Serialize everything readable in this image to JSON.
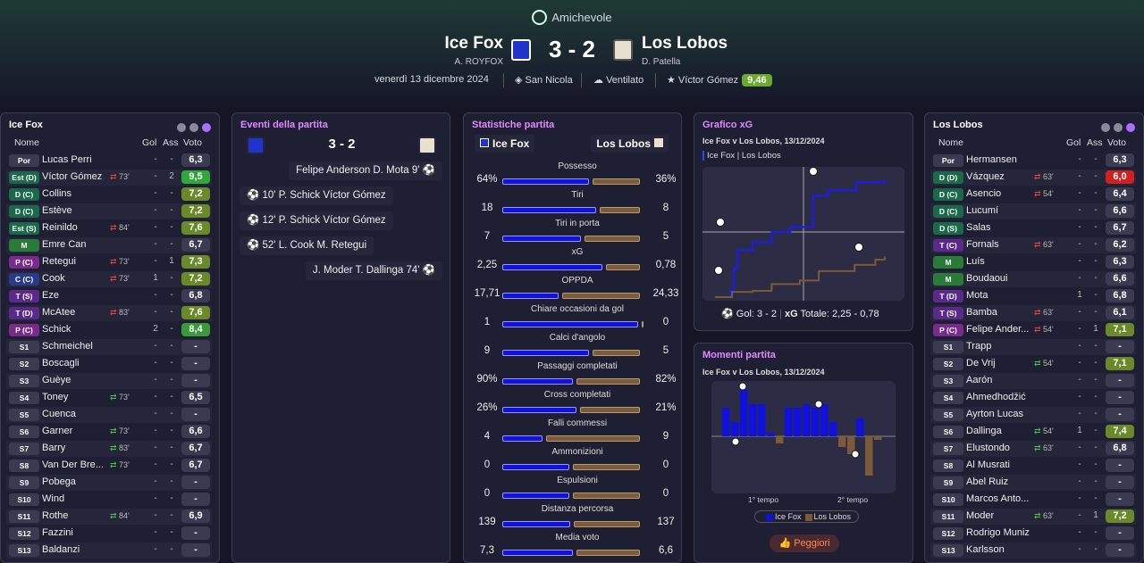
{
  "header": {
    "competition": "Amichevole",
    "home": {
      "name": "Ice Fox",
      "manager": "A. ROYFOX"
    },
    "away": {
      "name": "Los Lobos",
      "manager": "D. Patella"
    },
    "score": "3 - 2",
    "date": "venerdì 13 dicembre 2024",
    "stadium": "San Nicola",
    "weather": "Ventilato",
    "potm_name": "Víctor Gómez",
    "potm_rating": "9,46"
  },
  "colors": {
    "home": "#1111dd",
    "away": "#7a5a38",
    "accent": "#a870ff"
  },
  "home_lineup": {
    "title": "Ice Fox",
    "cols": {
      "name": "Nome",
      "goals": "Gol",
      "assists": "Ass",
      "rating": "Voto"
    },
    "players": [
      {
        "pos": "Por",
        "name": "Lucas Perri",
        "sub": "",
        "g": "-",
        "a": "-",
        "r": "6,3",
        "pc": "#3a3a50",
        "rc": "#3a3a50"
      },
      {
        "pos": "Est (D)",
        "name": "Víctor Gómez",
        "sub": "73'",
        "g": "-",
        "a": "2",
        "r": "9,5",
        "pc": "#1a6a4a",
        "rc": "#2fa83a"
      },
      {
        "pos": "D (C)",
        "name": "Collins",
        "sub": "",
        "g": "-",
        "a": "-",
        "r": "7,2",
        "pc": "#1a6a4a",
        "rc": "#6a8a2a"
      },
      {
        "pos": "D (C)",
        "name": "Estève",
        "sub": "",
        "g": "-",
        "a": "-",
        "r": "7,2",
        "pc": "#1a6a4a",
        "rc": "#6a8a2a"
      },
      {
        "pos": "Est (S)",
        "name": "Reinildo",
        "sub": "84'",
        "g": "-",
        "a": "-",
        "r": "7,6",
        "pc": "#1a6a4a",
        "rc": "#6a8a2a"
      },
      {
        "pos": "M",
        "name": "Emre Can",
        "sub": "",
        "g": "-",
        "a": "-",
        "r": "6,7",
        "pc": "#2a7a3a",
        "rc": "#3a3a50"
      },
      {
        "pos": "P (C)",
        "name": "Retegui",
        "sub": "73'",
        "g": "-",
        "a": "1",
        "r": "7,3",
        "pc": "#7a2a8a",
        "rc": "#6a8a2a"
      },
      {
        "pos": "C (C)",
        "name": "Cook",
        "sub": "73'",
        "g": "1",
        "a": "-",
        "r": "7,2",
        "pc": "#2a3a8a",
        "rc": "#6a8a2a"
      },
      {
        "pos": "T (S)",
        "name": "Eze",
        "sub": "",
        "g": "-",
        "a": "-",
        "r": "6,8",
        "pc": "#5a2a8a",
        "rc": "#3a3a50"
      },
      {
        "pos": "T (D)",
        "name": "McAtee",
        "sub": "83'",
        "g": "-",
        "a": "-",
        "r": "7,6",
        "pc": "#5a2a8a",
        "rc": "#6a8a2a"
      },
      {
        "pos": "P (C)",
        "name": "Schick",
        "sub": "",
        "g": "2",
        "a": "-",
        "r": "8,4",
        "pc": "#7a2a8a",
        "rc": "#3a9a3a"
      },
      {
        "pos": "S1",
        "name": "Schmeichel",
        "sub": "",
        "g": "-",
        "a": "-",
        "r": "-",
        "pc": "#3a3a50",
        "rc": "#3a3a50"
      },
      {
        "pos": "S2",
        "name": "Boscagli",
        "sub": "",
        "g": "-",
        "a": "-",
        "r": "-",
        "pc": "#3a3a50",
        "rc": "#3a3a50"
      },
      {
        "pos": "S3",
        "name": "Guèye",
        "sub": "",
        "g": "-",
        "a": "-",
        "r": "-",
        "pc": "#3a3a50",
        "rc": "#3a3a50"
      },
      {
        "pos": "S4",
        "name": "Toney",
        "sub": "73'",
        "g": "-",
        "a": "-",
        "r": "6,5",
        "pc": "#3a3a50",
        "rc": "#3a3a50"
      },
      {
        "pos": "S5",
        "name": "Cuenca",
        "sub": "",
        "g": "-",
        "a": "-",
        "r": "-",
        "pc": "#3a3a50",
        "rc": "#3a3a50"
      },
      {
        "pos": "S6",
        "name": "Garner",
        "sub": "73'",
        "g": "-",
        "a": "-",
        "r": "6,6",
        "pc": "#3a3a50",
        "rc": "#3a3a50"
      },
      {
        "pos": "S7",
        "name": "Barry",
        "sub": "83'",
        "g": "-",
        "a": "-",
        "r": "6,7",
        "pc": "#3a3a50",
        "rc": "#3a3a50"
      },
      {
        "pos": "S8",
        "name": "Van Der Bre...",
        "sub": "73'",
        "g": "-",
        "a": "-",
        "r": "6,7",
        "pc": "#3a3a50",
        "rc": "#3a3a50"
      },
      {
        "pos": "S9",
        "name": "Pobega",
        "sub": "",
        "g": "-",
        "a": "-",
        "r": "-",
        "pc": "#3a3a50",
        "rc": "#3a3a50"
      },
      {
        "pos": "S10",
        "name": "Wind",
        "sub": "",
        "g": "-",
        "a": "-",
        "r": "-",
        "pc": "#3a3a50",
        "rc": "#3a3a50"
      },
      {
        "pos": "S11",
        "name": "Rothe",
        "sub": "84'",
        "g": "-",
        "a": "-",
        "r": "6,9",
        "pc": "#3a3a50",
        "rc": "#3a3a50"
      },
      {
        "pos": "S12",
        "name": "Fazzini",
        "sub": "",
        "g": "-",
        "a": "-",
        "r": "-",
        "pc": "#3a3a50",
        "rc": "#3a3a50"
      },
      {
        "pos": "S13",
        "name": "Baldanzi",
        "sub": "",
        "g": "-",
        "a": "-",
        "r": "-",
        "pc": "#3a3a50",
        "rc": "#3a3a50"
      }
    ]
  },
  "away_lineup": {
    "title": "Los Lobos",
    "cols": {
      "name": "Nome",
      "goals": "Gol",
      "assists": "Ass",
      "rating": "Voto"
    },
    "players": [
      {
        "pos": "Por",
        "name": "Hermansen",
        "sub": "",
        "g": "-",
        "a": "-",
        "r": "6,3",
        "pc": "#3a3a50",
        "rc": "#3a3a50"
      },
      {
        "pos": "D (D)",
        "name": "Vázquez",
        "sub": "63'",
        "g": "-",
        "a": "-",
        "r": "6,0",
        "pc": "#1a6a4a",
        "rc": "#d02020"
      },
      {
        "pos": "D (C)",
        "name": "Asencio",
        "sub": "54'",
        "g": "-",
        "a": "-",
        "r": "6,4",
        "pc": "#1a6a4a",
        "rc": "#3a3a50"
      },
      {
        "pos": "D (C)",
        "name": "Lucumí",
        "sub": "",
        "g": "-",
        "a": "-",
        "r": "6,6",
        "pc": "#1a6a4a",
        "rc": "#3a3a50"
      },
      {
        "pos": "D (S)",
        "name": "Salas",
        "sub": "",
        "g": "-",
        "a": "-",
        "r": "6,7",
        "pc": "#1a6a4a",
        "rc": "#3a3a50"
      },
      {
        "pos": "T (C)",
        "name": "Fornals",
        "sub": "63'",
        "g": "-",
        "a": "-",
        "r": "6,2",
        "pc": "#5a2a8a",
        "rc": "#3a3a50"
      },
      {
        "pos": "M",
        "name": "Luís",
        "sub": "",
        "g": "-",
        "a": "-",
        "r": "6,3",
        "pc": "#2a7a3a",
        "rc": "#3a3a50"
      },
      {
        "pos": "M",
        "name": "Boudaoui",
        "sub": "",
        "g": "-",
        "a": "-",
        "r": "6,6",
        "pc": "#2a7a3a",
        "rc": "#3a3a50"
      },
      {
        "pos": "T (D)",
        "name": "Mota",
        "sub": "",
        "g": "1",
        "a": "-",
        "r": "6,8",
        "pc": "#5a2a8a",
        "rc": "#3a3a50"
      },
      {
        "pos": "T (S)",
        "name": "Bamba",
        "sub": "63'",
        "g": "-",
        "a": "-",
        "r": "6,1",
        "pc": "#5a2a8a",
        "rc": "#3a3a50"
      },
      {
        "pos": "P (C)",
        "name": "Felipe Ander...",
        "sub": "54'",
        "g": "-",
        "a": "1",
        "r": "7,1",
        "pc": "#7a2a8a",
        "rc": "#6a8a2a"
      },
      {
        "pos": "S1",
        "name": "Trapp",
        "sub": "",
        "g": "-",
        "a": "-",
        "r": "-",
        "pc": "#3a3a50",
        "rc": "#3a3a50"
      },
      {
        "pos": "S2",
        "name": "De Vrij",
        "sub": "54'",
        "g": "-",
        "a": "-",
        "r": "7,1",
        "pc": "#3a3a50",
        "rc": "#6a8a2a"
      },
      {
        "pos": "S3",
        "name": "Aarón",
        "sub": "",
        "g": "-",
        "a": "-",
        "r": "-",
        "pc": "#3a3a50",
        "rc": "#3a3a50"
      },
      {
        "pos": "S4",
        "name": "Ahmedhodžić",
        "sub": "",
        "g": "-",
        "a": "-",
        "r": "-",
        "pc": "#3a3a50",
        "rc": "#3a3a50"
      },
      {
        "pos": "S5",
        "name": "Ayrton Lucas",
        "sub": "",
        "g": "-",
        "a": "-",
        "r": "-",
        "pc": "#3a3a50",
        "rc": "#3a3a50"
      },
      {
        "pos": "S6",
        "name": "Dallinga",
        "sub": "54'",
        "g": "1",
        "a": "-",
        "r": "7,4",
        "pc": "#3a3a50",
        "rc": "#6a8a2a"
      },
      {
        "pos": "S7",
        "name": "Elustondo",
        "sub": "63'",
        "g": "-",
        "a": "-",
        "r": "6,8",
        "pc": "#3a3a50",
        "rc": "#3a3a50"
      },
      {
        "pos": "S8",
        "name": "Al Musrati",
        "sub": "",
        "g": "-",
        "a": "-",
        "r": "-",
        "pc": "#3a3a50",
        "rc": "#3a3a50"
      },
      {
        "pos": "S9",
        "name": "Abel Ruiz",
        "sub": "",
        "g": "-",
        "a": "-",
        "r": "-",
        "pc": "#3a3a50",
        "rc": "#3a3a50"
      },
      {
        "pos": "S10",
        "name": "Marcos Anto...",
        "sub": "",
        "g": "-",
        "a": "-",
        "r": "-",
        "pc": "#3a3a50",
        "rc": "#3a3a50"
      },
      {
        "pos": "S11",
        "name": "Moder",
        "sub": "63'",
        "g": "-",
        "a": "1",
        "r": "7,2",
        "pc": "#3a3a50",
        "rc": "#6a8a2a"
      },
      {
        "pos": "S12",
        "name": "Rodrigo Muniz",
        "sub": "",
        "g": "-",
        "a": "-",
        "r": "-",
        "pc": "#3a3a50",
        "rc": "#3a3a50"
      },
      {
        "pos": "S13",
        "name": "Karlsson",
        "sub": "",
        "g": "-",
        "a": "-",
        "r": "-",
        "pc": "#3a3a50",
        "rc": "#3a3a50"
      }
    ]
  },
  "events": {
    "title": "Eventi della partita",
    "score": "3 - 2",
    "list": [
      {
        "side": "away",
        "text": "Felipe Anderson  D. Mota  9'"
      },
      {
        "side": "home",
        "text": "10'  P. Schick  Víctor Gómez"
      },
      {
        "side": "home",
        "text": "12'  P. Schick  Víctor Gómez"
      },
      {
        "side": "home",
        "text": "52'  L. Cook  M. Retegui"
      },
      {
        "side": "away",
        "text": "J. Moder  T. Dallinga  74'"
      }
    ]
  },
  "stats": {
    "title": "Statistiche partita",
    "home": "Ice Fox",
    "away": "Los Lobos",
    "rows": [
      {
        "label": "Possesso",
        "h": "64%",
        "a": "36%",
        "hv": 64,
        "av": 36
      },
      {
        "label": "Tiri",
        "h": "18",
        "a": "8",
        "hv": 18,
        "av": 8
      },
      {
        "label": "Tiri in porta",
        "h": "7",
        "a": "5",
        "hv": 7,
        "av": 5
      },
      {
        "label": "xG",
        "h": "2,25",
        "a": "0,78",
        "hv": 2.25,
        "av": 0.78
      },
      {
        "label": "OPPDA",
        "h": "17,71",
        "a": "24,33",
        "hv": 17.71,
        "av": 24.33
      },
      {
        "label": "Chiare occasioni da gol",
        "h": "1",
        "a": "0",
        "hv": 1,
        "av": 0
      },
      {
        "label": "Calci d'angolo",
        "h": "9",
        "a": "5",
        "hv": 9,
        "av": 5
      },
      {
        "label": "Passaggi completati",
        "h": "90%",
        "a": "82%",
        "hv": 90,
        "av": 82
      },
      {
        "label": "Cross completati",
        "h": "26%",
        "a": "21%",
        "hv": 26,
        "av": 21
      },
      {
        "label": "Falli commessi",
        "h": "4",
        "a": "9",
        "hv": 4,
        "av": 9
      },
      {
        "label": "Ammonizioni",
        "h": "0",
        "a": "0",
        "hv": 0,
        "av": 0
      },
      {
        "label": "Espulsioni",
        "h": "0",
        "a": "0",
        "hv": 0,
        "av": 0
      },
      {
        "label": "Distanza percorsa",
        "h": "139",
        "a": "137",
        "hv": 139,
        "av": 137
      },
      {
        "label": "Media voto",
        "h": "7,3",
        "a": "6,6",
        "hv": 7.3,
        "av": 6.6
      }
    ]
  },
  "xg": {
    "title": "Grafico xG",
    "subtitle": "Ice Fox v Los Lobos, 13/12/2024",
    "legend_home": "Ice Fox",
    "legend_away": "Los Lobos",
    "footer_goals": "Gol: 3 - 2",
    "footer_xg": "Totale: 2,25 - 0,78",
    "footer_xg_label": "xG"
  },
  "chart_data": {
    "type": "line",
    "title": "Grafico xG",
    "series": [
      {
        "name": "Ice Fox",
        "x": [
          0,
          8,
          10,
          12,
          20,
          30,
          40,
          52,
          60,
          75,
          90
        ],
        "y": [
          0,
          0.12,
          0.55,
          0.9,
          1.05,
          1.25,
          1.35,
          1.95,
          2.05,
          2.2,
          2.25
        ]
      },
      {
        "name": "Los Lobos",
        "x": [
          0,
          9,
          20,
          30,
          45,
          55,
          74,
          85,
          90
        ],
        "y": [
          0,
          0.1,
          0.12,
          0.25,
          0.32,
          0.5,
          0.62,
          0.72,
          0.78
        ]
      }
    ],
    "xlim": [
      0,
      90
    ],
    "ylim": [
      0,
      2.4
    ]
  },
  "moments": {
    "title": "Momenti partita",
    "subtitle": "Ice Fox v Los Lobos, 13/12/2024",
    "half1": "1° tempo",
    "half2": "2° tempo",
    "legend_home": "Ice Fox",
    "legend_away": "Los Lobos",
    "button": "Peggiori",
    "values": [
      0.8,
      0.4,
      1.3,
      0.9,
      0.9,
      0.1,
      -0.2,
      0.8,
      0.8,
      0.9,
      0.8,
      0.9,
      0.4,
      -0.3,
      -0.5,
      0.5,
      -1.1,
      -0.1
    ]
  }
}
